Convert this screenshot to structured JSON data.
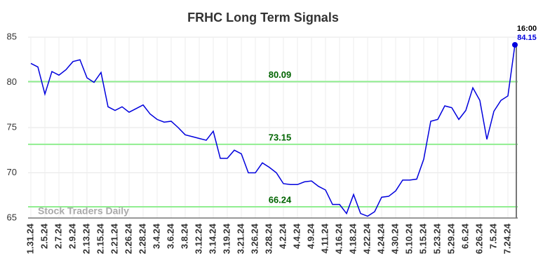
{
  "chart_data": {
    "type": "line",
    "title": "FRHC Long Term Signals",
    "categories": [
      "1.31.24",
      null,
      "2.5.24",
      null,
      "2.7.24",
      null,
      "2.9.24",
      null,
      "2.13.24",
      null,
      "2.15.24",
      null,
      "2.21.24",
      null,
      "2.26.24",
      null,
      "2.28.24",
      null,
      "3.4.24",
      null,
      "3.6.24",
      null,
      "3.8.24",
      null,
      "3.12.24",
      null,
      "3.14.24",
      null,
      "3.19.24",
      null,
      "3.21.24",
      null,
      "3.26.24",
      null,
      "3.28.24",
      null,
      "4.2.24",
      null,
      "4.4.24",
      null,
      "4.9.24",
      null,
      "4.11.24",
      null,
      "4.16.24",
      null,
      "4.18.24",
      null,
      "4.22.24",
      null,
      "4.24.24",
      null,
      "4.30.24",
      null,
      "5.10.24",
      null,
      "5.15.24",
      null,
      "5.23.24",
      null,
      "5.29.24",
      null,
      "6.6.24",
      null,
      "6.26.24",
      null,
      "7.5.24",
      null,
      "7.24.24",
      null
    ],
    "values": [
      82.1,
      81.7,
      78.7,
      81.2,
      80.8,
      81.4,
      82.3,
      82.5,
      80.5,
      80.0,
      81.1,
      77.3,
      76.9,
      77.3,
      76.7,
      77.1,
      77.5,
      76.5,
      75.9,
      75.6,
      75.7,
      75.0,
      74.2,
      74.0,
      73.8,
      73.6,
      74.6,
      71.6,
      71.6,
      72.5,
      72.1,
      70.0,
      70.0,
      71.1,
      70.6,
      70.0,
      68.8,
      68.7,
      68.7,
      69.0,
      69.1,
      68.5,
      68.1,
      66.5,
      66.5,
      65.5,
      67.6,
      65.5,
      65.2,
      65.7,
      67.3,
      67.4,
      68.0,
      69.2,
      69.2,
      69.3,
      71.5,
      75.7,
      75.9,
      77.4,
      77.2,
      75.9,
      76.9,
      79.4,
      78.0,
      73.7,
      76.8,
      78.0,
      78.5,
      84.15
    ],
    "color": "#0000dd",
    "ylim": [
      65,
      85
    ],
    "yticks": [
      65,
      70,
      75,
      80,
      85
    ],
    "grid": true,
    "levels": [
      80.09,
      73.15,
      66.24
    ],
    "level_color": "#90ee90",
    "level_label_color": "#006400",
    "last_time": "16:00",
    "watermark": "Stock Traders Daily"
  }
}
